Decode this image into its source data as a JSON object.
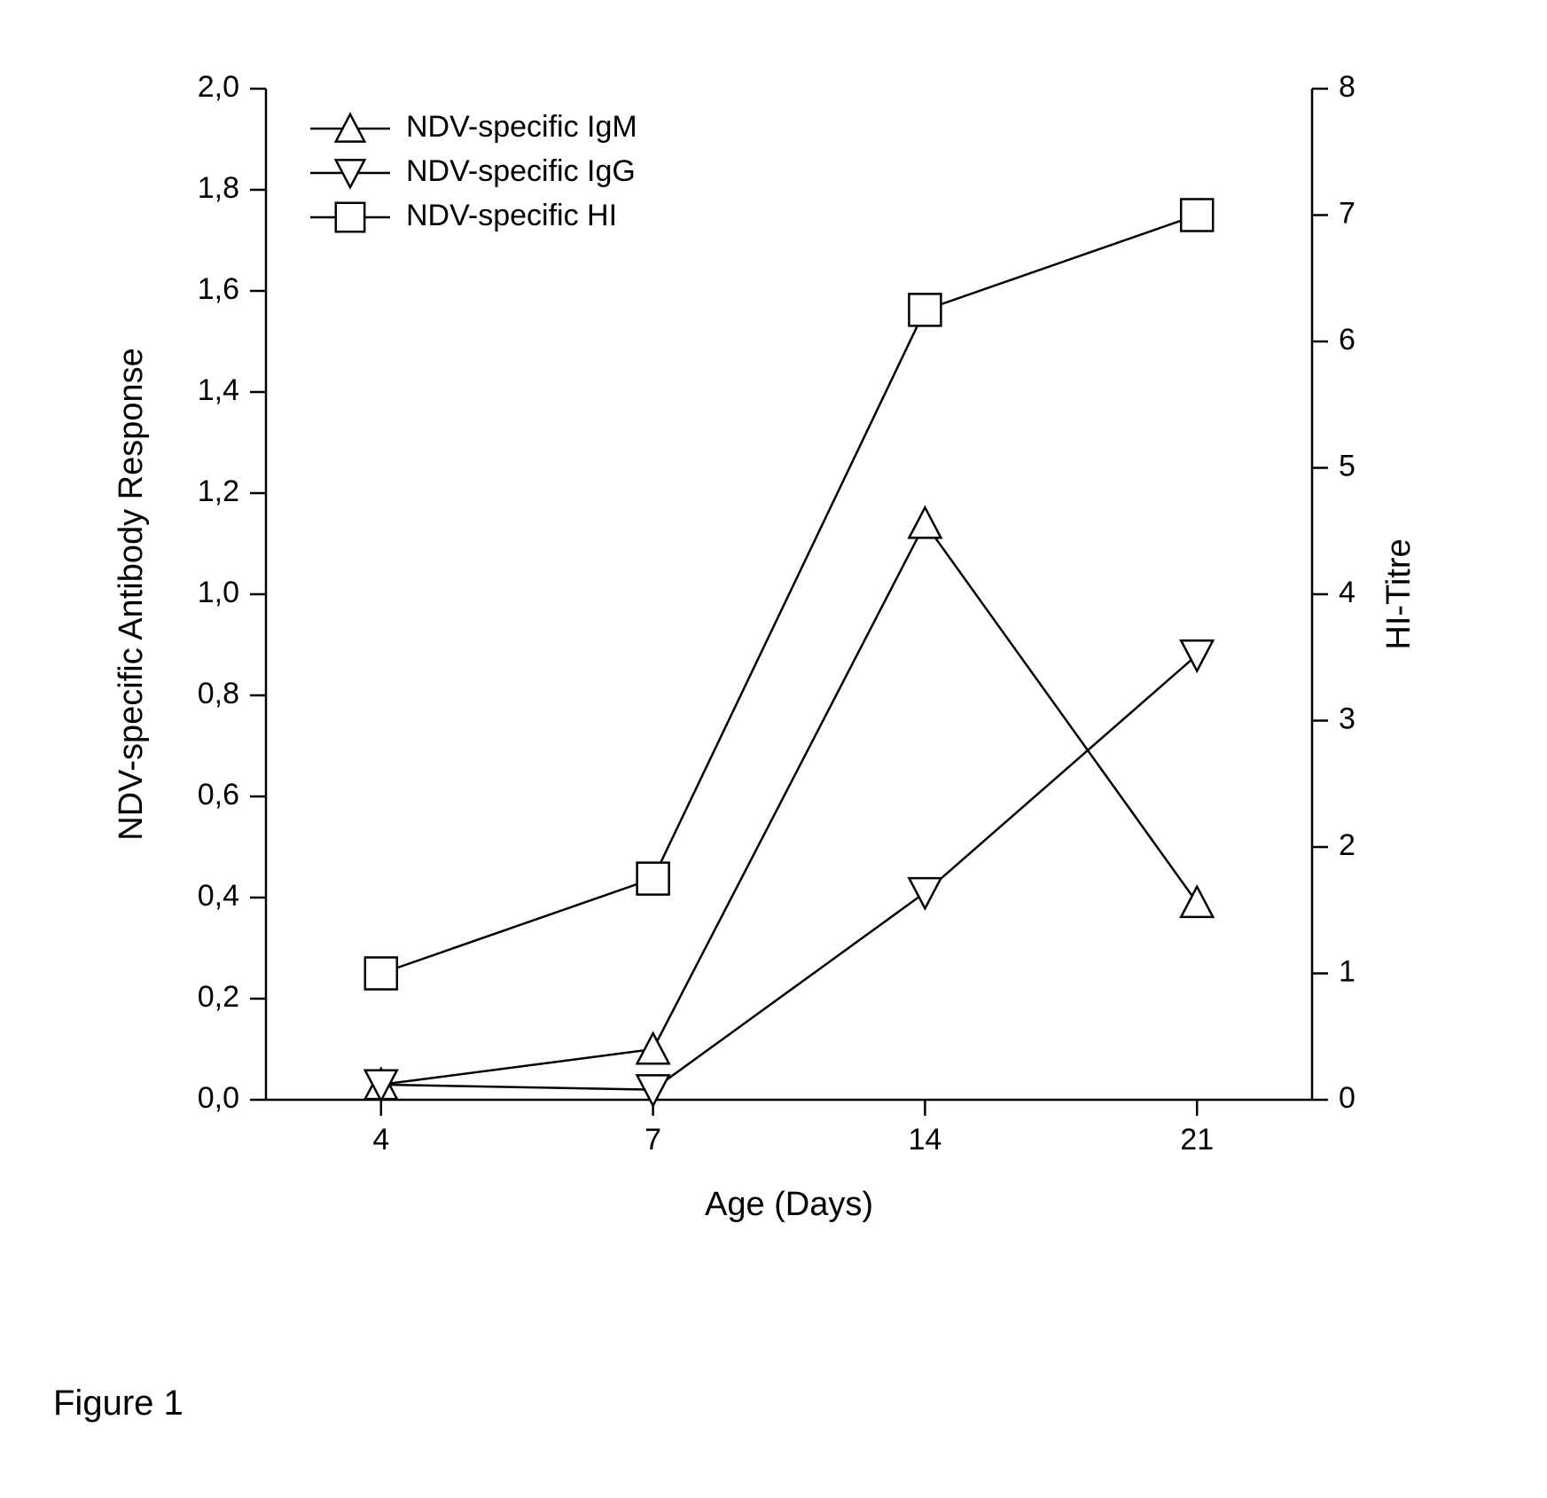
{
  "chart": {
    "type": "line",
    "x_categories": [
      "4",
      "7",
      "14",
      "21"
    ],
    "x_positions": [
      0,
      1,
      2,
      3
    ],
    "series": [
      {
        "name": "NDV-specific IgM",
        "marker": "triangle-up",
        "axis": "left",
        "values": [
          0.03,
          0.1,
          1.14,
          0.39
        ],
        "color": "#000000"
      },
      {
        "name": "NDV-specific IgG",
        "marker": "triangle-down",
        "axis": "left",
        "values": [
          0.03,
          0.02,
          0.41,
          0.88
        ],
        "color": "#000000"
      },
      {
        "name": "NDV-specific HI",
        "marker": "square",
        "axis": "right",
        "values": [
          1.0,
          1.75,
          6.25,
          7.0
        ],
        "color": "#000000"
      }
    ],
    "left_axis": {
      "label": "NDV-specific Antibody Response",
      "min": 0.0,
      "max": 2.0,
      "ticks": [
        0.0,
        0.2,
        0.4,
        0.6,
        0.8,
        1.0,
        1.2,
        1.4,
        1.6,
        1.8,
        2.0
      ],
      "tick_labels": [
        "0,0",
        "0,2",
        "0,4",
        "0,6",
        "0,8",
        "1,0",
        "1,2",
        "1,4",
        "1,6",
        "1,8",
        "2,0"
      ]
    },
    "right_axis": {
      "label": "HI-Titre",
      "min": 0,
      "max": 8,
      "ticks": [
        0,
        1,
        2,
        3,
        4,
        5,
        6,
        7,
        8
      ],
      "tick_labels": [
        "0",
        "1",
        "2",
        "3",
        "4",
        "5",
        "6",
        "7",
        "8"
      ]
    },
    "x_axis": {
      "label": "Age (Days)"
    },
    "legend": {
      "position": "top-left-inside",
      "items": [
        {
          "marker": "triangle-up",
          "label": "NDV-specific IgM"
        },
        {
          "marker": "triangle-down",
          "label": "NDV-specific IgG"
        },
        {
          "marker": "square",
          "label": "NDV-specific HI"
        }
      ]
    },
    "style": {
      "background_color": "#ffffff",
      "axis_color": "#000000",
      "line_color": "#000000",
      "line_width": 2.5,
      "marker_size": 18,
      "marker_fill": "#ffffff",
      "marker_stroke": "#000000",
      "marker_stroke_width": 2.5,
      "tick_font_size": 34,
      "label_font_size": 38,
      "legend_font_size": 34,
      "tick_length": 18,
      "axis_width": 2.5
    }
  },
  "figure_label": "Figure 1"
}
